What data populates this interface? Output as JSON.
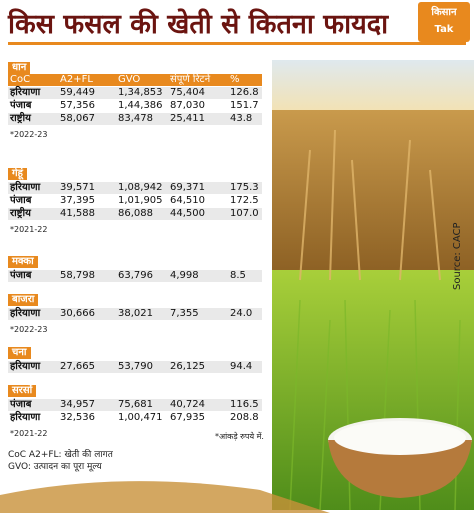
{
  "logo": {
    "line1": "किसान",
    "line2": "Tak"
  },
  "title": "किस फसल की खेती से कितना फायदा",
  "columns": [
    "CoC",
    "A2+FL",
    "GVO",
    "संपूर्ण रिटर्न",
    "%"
  ],
  "sections": [
    {
      "crop": "धान",
      "rows": [
        [
          "हरियाणा",
          "59,449",
          "1,34,853",
          "75,404",
          "126.8"
        ],
        [
          "पंजाब",
          "57,356",
          "1,44,386",
          "87,030",
          "151.7"
        ],
        [
          "राष्ट्रीय",
          "58,067",
          "83,478",
          "25,411",
          "43.8"
        ]
      ],
      "note": "*2022-23"
    },
    {
      "crop": "गेहूं",
      "rows": [
        [
          "हरियाणा",
          "39,571",
          "1,08,942",
          "69,371",
          "175.3"
        ],
        [
          "पंजाब",
          "37,395",
          "1,01,905",
          "64,510",
          "172.5"
        ],
        [
          "राष्ट्रीय",
          "41,588",
          "86,088",
          "44,500",
          "107.0"
        ]
      ],
      "note": "*2021-22"
    },
    {
      "crop": "मक्का",
      "rows": [
        [
          "पंजाब",
          "58,798",
          "63,796",
          "4,998",
          "8.5"
        ]
      ]
    },
    {
      "crop": "बाजरा",
      "rows": [
        [
          "हरियाणा",
          "30,666",
          "38,021",
          "7,355",
          "24.0"
        ]
      ],
      "note": "*2022-23"
    },
    {
      "crop": "चना",
      "rows": [
        [
          "हरियाणा",
          "27,665",
          "53,790",
          "26,125",
          "94.4"
        ]
      ]
    },
    {
      "crop": "सरसों",
      "rows": [
        [
          "पंजाब",
          "34,957",
          "75,681",
          "40,724",
          "116.5"
        ],
        [
          "हरियाणा",
          "32,536",
          "1,00,471",
          "67,935",
          "208.8"
        ]
      ],
      "note": "*2021-22"
    }
  ],
  "unit_note": "*आंकड़े रुपये में.",
  "footnotes": [
    "CoC A2+FL: खेती की लागत",
    "GVO: उत्पादन का पूरा मूल्य"
  ],
  "source": "Source: CACP"
}
